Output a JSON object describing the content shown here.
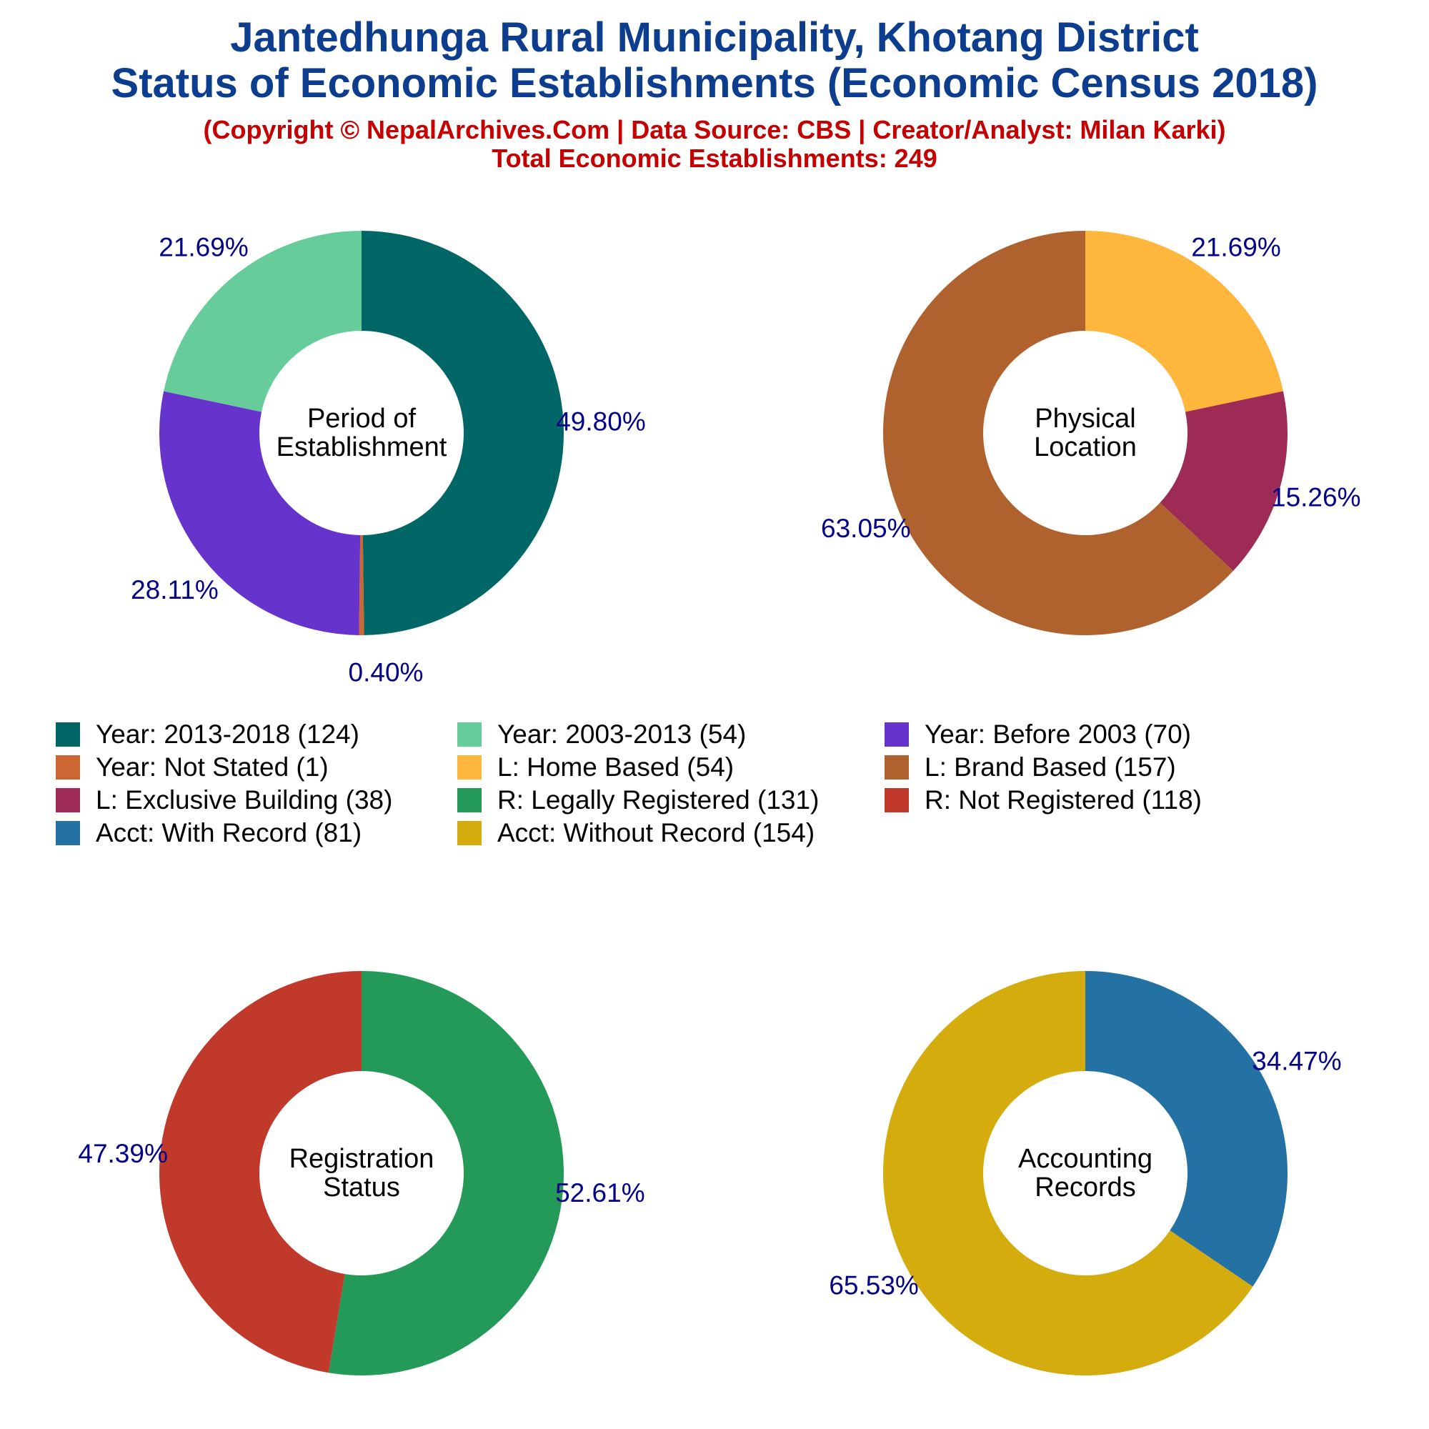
{
  "title_line1": "Jantedhunga Rural Municipality, Khotang District",
  "title_line2": "Status of Economic Establishments (Economic Census 2018)",
  "subtitle_copyright": "(Copyright © NepalArchives.Com | Data Source: CBS | Creator/Analyst: Milan Karki)",
  "subtitle_total": "Total Economic Establishments: 249",
  "legend": [
    {
      "label": "Year: 2013-2018 (124)",
      "color": "#006766"
    },
    {
      "label": "Year: 2003-2013 (54)",
      "color": "#66cc99"
    },
    {
      "label": "Year: Before 2003 (70)",
      "color": "#6633cc"
    },
    {
      "label": "Year: Not Stated (1)",
      "color": "#cc6633"
    },
    {
      "label": "L: Home Based (54)",
      "color": "#ffb63c"
    },
    {
      "label": "L: Brand Based (157)",
      "color": "#b0622e"
    },
    {
      "label": "L: Exclusive Building (38)",
      "color": "#9e2a56"
    },
    {
      "label": "R: Legally Registered (131)",
      "color": "#239a58"
    },
    {
      "label": "R: Not Registered (118)",
      "color": "#c0392b"
    },
    {
      "label": "Acct: With Record (81)",
      "color": "#2471a3"
    },
    {
      "label": "Acct: Without Record (154)",
      "color": "#d4ac0d"
    }
  ],
  "chart_data": [
    {
      "type": "pie",
      "center_label": [
        "Period of",
        "Establishment"
      ],
      "start_angle_deg": 90,
      "direction": "clockwise",
      "slices": [
        {
          "name": "Year: 2013-2018",
          "value": 124,
          "pct_label": "49.80%",
          "color": "#006766"
        },
        {
          "name": "Year: Not Stated",
          "value": 1,
          "pct_label": "0.40%",
          "color": "#cc6633"
        },
        {
          "name": "Year: Before 2003",
          "value": 70,
          "pct_label": "28.11%",
          "color": "#6633cc"
        },
        {
          "name": "Year: 2003-2013",
          "value": 54,
          "pct_label": "21.69%",
          "color": "#66cc99"
        }
      ]
    },
    {
      "type": "pie",
      "center_label": [
        "Physical",
        "Location"
      ],
      "start_angle_deg": 90,
      "direction": "clockwise",
      "slices": [
        {
          "name": "L: Home Based",
          "value": 54,
          "pct_label": "21.69%",
          "color": "#ffb63c"
        },
        {
          "name": "L: Exclusive Building",
          "value": 38,
          "pct_label": "15.26%",
          "color": "#9e2a56"
        },
        {
          "name": "L: Brand Based",
          "value": 157,
          "pct_label": "63.05%",
          "color": "#b0622e"
        }
      ]
    },
    {
      "type": "pie",
      "center_label": [
        "Registration",
        "Status"
      ],
      "start_angle_deg": 90,
      "direction": "clockwise",
      "slices": [
        {
          "name": "R: Legally Registered",
          "value": 131,
          "pct_label": "52.61%",
          "color": "#239a58"
        },
        {
          "name": "R: Not Registered",
          "value": 118,
          "pct_label": "47.39%",
          "color": "#c0392b"
        }
      ]
    },
    {
      "type": "pie",
      "center_label": [
        "Accounting",
        "Records"
      ],
      "start_angle_deg": 90,
      "direction": "clockwise",
      "slices": [
        {
          "name": "Acct: With Record",
          "value": 81,
          "pct_label": "34.47%",
          "color": "#2471a3"
        },
        {
          "name": "Acct: Without Record",
          "value": 154,
          "pct_label": "65.53%",
          "color": "#d4ac0d"
        }
      ]
    }
  ]
}
